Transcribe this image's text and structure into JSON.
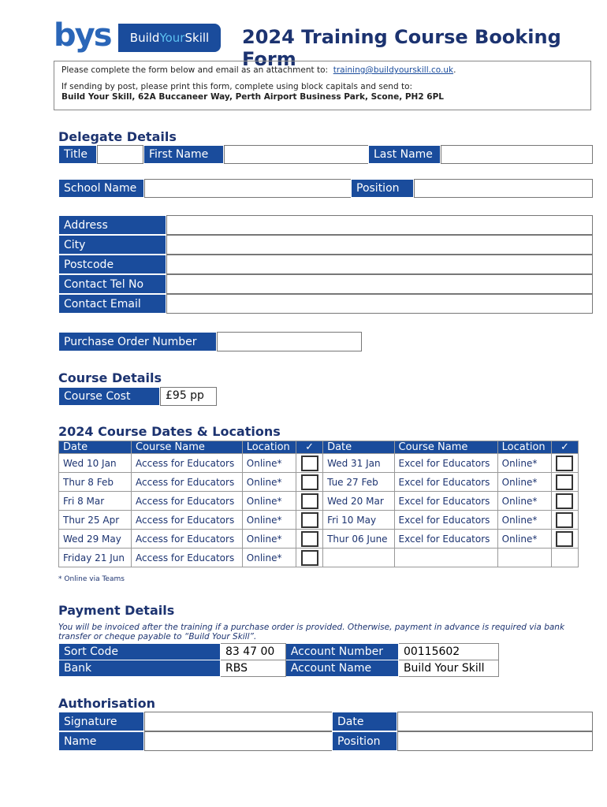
{
  "logo": {
    "mark": "bys",
    "name_part1": "Build",
    "name_part2": "Your",
    "name_part3": "Skill"
  },
  "title": "2024 Training Course Booking Form",
  "info": {
    "line1": "Please complete the form below and email as an attachment to:",
    "email": "training@buildyourskill.co.uk",
    "line1_end": ".",
    "line2": "If sending by post, please print this form, complete using block capitals and send to:",
    "address": "Build Your Skill, 62A Buccaneer Way, Perth Airport Business Park, Scone, PH2 6PL"
  },
  "delegate": {
    "heading": "Delegate Details",
    "title": "Title",
    "first_name": "First Name",
    "last_name": "Last Name",
    "school_name": "School Name",
    "position": "Position",
    "address": "Address",
    "city": "City",
    "postcode": "Postcode",
    "tel": "Contact Tel No",
    "email": "Contact Email",
    "po": "Purchase Order Number"
  },
  "course": {
    "heading": "Course Details",
    "cost_label": "Course Cost",
    "cost_value": "£95 pp"
  },
  "dates": {
    "heading": "2024 Course Dates & Locations",
    "headers": [
      "Date",
      "Course Name",
      "Location",
      "✓",
      "Date",
      "Course Name",
      "Location",
      "✓"
    ],
    "rows": [
      [
        "Wed 10 Jan",
        "Access for Educators",
        "Online*",
        "Wed 31 Jan",
        "Excel for Educators",
        "Online*"
      ],
      [
        "Thur 8 Feb",
        "Access for Educators",
        "Online*",
        "Tue 27  Feb",
        "Excel for Educators",
        "Online*"
      ],
      [
        "Fri 8 Mar",
        "Access for Educators",
        "Online*",
        "Wed 20 Mar",
        "Excel for Educators",
        "Online*"
      ],
      [
        "Thur 25 Apr",
        "Access for Educators",
        "Online*",
        "Fri 10 May",
        "Excel for Educators",
        "Online*"
      ],
      [
        "Wed 29 May",
        "Access for Educators",
        "Online*",
        "Thur 06 June",
        "Excel for Educators",
        "Online*"
      ],
      [
        "Friday 21 Jun",
        "Access for Educators",
        "Online*",
        "",
        "",
        ""
      ]
    ],
    "footnote": "* Online via Teams"
  },
  "payment": {
    "heading": "Payment Details",
    "note": "You will be invoiced after the training if a purchase order is provided. Otherwise, payment in advance is required via bank transfer or cheque payable to “Build Your Skill”.",
    "sort_code_label": "Sort Code",
    "sort_code": "83 47 00",
    "account_number_label": "Account Number",
    "account_number": "00115602",
    "bank_label": "Bank",
    "bank": "RBS",
    "account_name_label": "Account Name",
    "account_name": "Build Your Skill"
  },
  "auth": {
    "heading": "Authorisation",
    "signature": "Signature",
    "date": "Date",
    "name": "Name",
    "position": "Position"
  },
  "colors": {
    "brand_blue": "#1a4c9c",
    "heading_navy": "#1c3370"
  }
}
